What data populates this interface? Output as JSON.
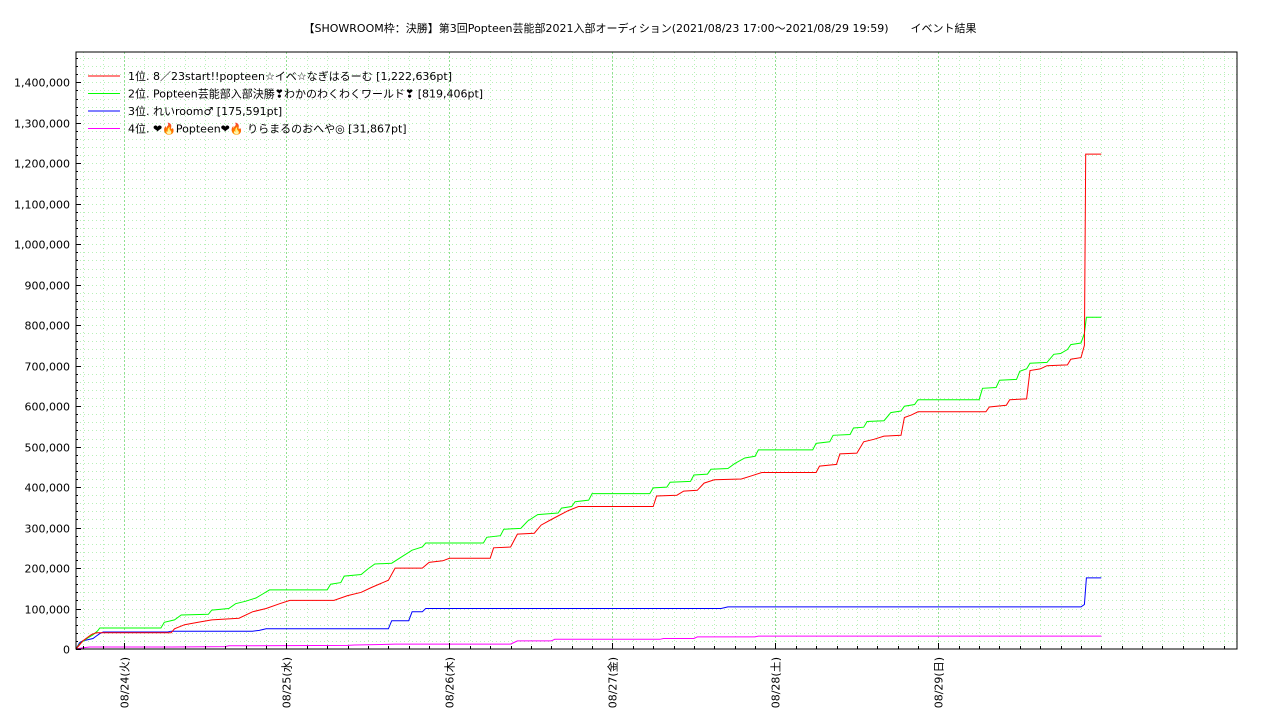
{
  "chart_data": {
    "type": "line",
    "title": "【SHOWROOM枠：決勝】第3回Popteen芸能部2021入部オーディション(2021/08/23 17:00〜2021/08/29 19:59)　　イベント結果",
    "xlabel": "",
    "ylabel": "",
    "ylim": [
      0,
      1475000
    ],
    "xlim": [
      0,
      170.98
    ],
    "x_unit": "hours since 2021/08/23 17:00",
    "grid": true,
    "legend_position": "top-left",
    "x_tick_labels": [
      {
        "x": 7,
        "label": "08/24(火)"
      },
      {
        "x": 31,
        "label": "08/25(水)"
      },
      {
        "x": 55,
        "label": "08/26(木)"
      },
      {
        "x": 79,
        "label": "08/27(金)"
      },
      {
        "x": 103,
        "label": "08/28(土)"
      },
      {
        "x": 127,
        "label": "08/29(日)"
      }
    ],
    "y_ticks": [
      0,
      100000,
      200000,
      300000,
      400000,
      500000,
      600000,
      700000,
      800000,
      900000,
      1000000,
      1100000,
      1200000,
      1300000,
      1400000
    ],
    "y_tick_labels": [
      "0",
      "100,000",
      "200,000",
      "300,000",
      "400,000",
      "500,000",
      "600,000",
      "700,000",
      "800,000",
      "900,000",
      "1,000,000",
      "1,100,000",
      "1,200,000",
      "1,300,000",
      "1,400,000"
    ],
    "series": [
      {
        "name": "1位. 8／23start!!popteen☆イベ☆なぎはるーむ [1,222,636pt]",
        "color": "#ff0000",
        "points": [
          [
            0,
            0
          ],
          [
            0.5,
            10000
          ],
          [
            1,
            20000
          ],
          [
            1.8,
            30000
          ],
          [
            2.3,
            36000
          ],
          [
            3,
            40000
          ],
          [
            14,
            40000
          ],
          [
            14.5,
            50000
          ],
          [
            16,
            60000
          ],
          [
            18,
            66000
          ],
          [
            20,
            72000
          ],
          [
            24,
            76000
          ],
          [
            26,
            92000
          ],
          [
            28,
            100000
          ],
          [
            30,
            112000
          ],
          [
            31.5,
            120000
          ],
          [
            38,
            120000
          ],
          [
            40,
            132000
          ],
          [
            42,
            140000
          ],
          [
            43.5,
            152000
          ],
          [
            46,
            170000
          ],
          [
            47,
            200000
          ],
          [
            51,
            200000
          ],
          [
            52,
            214000
          ],
          [
            54,
            218000
          ],
          [
            55,
            224000
          ],
          [
            61,
            224000
          ],
          [
            61.5,
            250000
          ],
          [
            64,
            252000
          ],
          [
            65,
            284000
          ],
          [
            67.5,
            286000
          ],
          [
            68.5,
            306000
          ],
          [
            70,
            320000
          ],
          [
            72.5,
            342000
          ],
          [
            74,
            352000
          ],
          [
            85,
            352000
          ],
          [
            85.5,
            378000
          ],
          [
            88.5,
            380000
          ],
          [
            89.5,
            390000
          ],
          [
            91.5,
            392000
          ],
          [
            92.5,
            410000
          ],
          [
            94,
            418000
          ],
          [
            98,
            420000
          ],
          [
            99.5,
            428000
          ],
          [
            101,
            436000
          ],
          [
            109,
            436000
          ],
          [
            109.5,
            452000
          ],
          [
            112,
            456000
          ],
          [
            112.5,
            482000
          ],
          [
            115,
            484000
          ],
          [
            116,
            512000
          ],
          [
            117.5,
            518000
          ],
          [
            119,
            526000
          ],
          [
            121.5,
            528000
          ],
          [
            122,
            572000
          ],
          [
            123,
            578000
          ],
          [
            124,
            586000
          ],
          [
            134,
            586000
          ],
          [
            134.5,
            598000
          ],
          [
            137,
            602000
          ],
          [
            137.5,
            616000
          ],
          [
            140,
            618000
          ],
          [
            140.5,
            688000
          ],
          [
            142,
            692000
          ],
          [
            143,
            700000
          ],
          [
            146,
            702000
          ],
          [
            146.5,
            716000
          ],
          [
            148,
            720000
          ],
          [
            148.5,
            750000
          ],
          [
            148.7,
            1222636
          ],
          [
            151,
            1222636
          ]
        ]
      },
      {
        "name": "2位. Popteen芸能部入部決勝❣わかのわくわくワールド❣ [819,406pt]",
        "color": "#00ff00",
        "points": [
          [
            0,
            0
          ],
          [
            0.5,
            12000
          ],
          [
            1.5,
            25000
          ],
          [
            2.5,
            35000
          ],
          [
            3.2,
            45000
          ],
          [
            3.5,
            52000
          ],
          [
            12.5,
            52000
          ],
          [
            13,
            66000
          ],
          [
            14.5,
            72000
          ],
          [
            15.5,
            84000
          ],
          [
            19.5,
            86000
          ],
          [
            20,
            96000
          ],
          [
            22.5,
            100000
          ],
          [
            23.5,
            112000
          ],
          [
            25,
            118000
          ],
          [
            26.5,
            126000
          ],
          [
            27.5,
            136000
          ],
          [
            28.5,
            146000
          ],
          [
            37,
            146000
          ],
          [
            37.5,
            160000
          ],
          [
            39,
            164000
          ],
          [
            39.5,
            180000
          ],
          [
            42,
            184000
          ],
          [
            43,
            198000
          ],
          [
            44,
            210000
          ],
          [
            46.5,
            212000
          ],
          [
            48,
            228000
          ],
          [
            49.5,
            244000
          ],
          [
            51,
            252000
          ],
          [
            51.5,
            262000
          ],
          [
            60,
            262000
          ],
          [
            60.5,
            276000
          ],
          [
            62.5,
            280000
          ],
          [
            63,
            296000
          ],
          [
            65.5,
            298000
          ],
          [
            66.5,
            316000
          ],
          [
            68,
            332000
          ],
          [
            71,
            336000
          ],
          [
            71.5,
            348000
          ],
          [
            73,
            352000
          ],
          [
            73.5,
            364000
          ],
          [
            75.5,
            368000
          ],
          [
            76,
            384000
          ],
          [
            84.5,
            384000
          ],
          [
            85,
            398000
          ],
          [
            87,
            400000
          ],
          [
            87.5,
            412000
          ],
          [
            90.5,
            414000
          ],
          [
            91,
            430000
          ],
          [
            93,
            432000
          ],
          [
            93.5,
            444000
          ],
          [
            96,
            446000
          ],
          [
            97,
            458000
          ],
          [
            98.5,
            472000
          ],
          [
            100,
            476000
          ],
          [
            100.5,
            492000
          ],
          [
            108.5,
            492000
          ],
          [
            109,
            508000
          ],
          [
            111,
            512000
          ],
          [
            111.5,
            528000
          ],
          [
            114,
            530000
          ],
          [
            114.5,
            546000
          ],
          [
            116,
            548000
          ],
          [
            116.5,
            562000
          ],
          [
            119,
            564000
          ],
          [
            120,
            584000
          ],
          [
            121.5,
            588000
          ],
          [
            122,
            600000
          ],
          [
            123.5,
            604000
          ],
          [
            124,
            616000
          ],
          [
            133,
            616000
          ],
          [
            133.5,
            644000
          ],
          [
            135.5,
            646000
          ],
          [
            136,
            664000
          ],
          [
            138.5,
            666000
          ],
          [
            139,
            686000
          ],
          [
            140,
            692000
          ],
          [
            140.5,
            706000
          ],
          [
            143,
            708000
          ],
          [
            144,
            728000
          ],
          [
            145,
            730000
          ],
          [
            146,
            740000
          ],
          [
            146.5,
            752000
          ],
          [
            148,
            756000
          ],
          [
            148.5,
            780000
          ],
          [
            148.8,
            819406
          ],
          [
            151,
            819406
          ]
        ]
      },
      {
        "name": "3位. れいroom♂ [175,591pt]",
        "color": "#0000ff",
        "points": [
          [
            0,
            0
          ],
          [
            0.5,
            15000
          ],
          [
            1,
            20000
          ],
          [
            2.5,
            26000
          ],
          [
            3,
            32000
          ],
          [
            3.5,
            38000
          ],
          [
            4,
            42000
          ],
          [
            13.5,
            42000
          ],
          [
            14,
            44000
          ],
          [
            26,
            44000
          ],
          [
            27,
            46000
          ],
          [
            28,
            50000
          ],
          [
            46,
            50000
          ],
          [
            46.5,
            70000
          ],
          [
            49,
            70000
          ],
          [
            49.5,
            92000
          ],
          [
            51,
            92000
          ],
          [
            51.5,
            100000
          ],
          [
            95,
            100000
          ],
          [
            96,
            104000
          ],
          [
            148,
            104000
          ],
          [
            148.5,
            110000
          ],
          [
            148.8,
            175591
          ],
          [
            151,
            175591
          ]
        ]
      },
      {
        "name": "4位. ❤🔥Popteen❤🔥 りらまるのおへや◎ [31,867pt]",
        "color": "#ff00ff",
        "points": [
          [
            0,
            0
          ],
          [
            1,
            3000
          ],
          [
            2,
            5000
          ],
          [
            14,
            5000
          ],
          [
            22,
            6000
          ],
          [
            22.5,
            8000
          ],
          [
            40,
            9000
          ],
          [
            41,
            10000
          ],
          [
            45,
            11000
          ],
          [
            47,
            12000
          ],
          [
            64,
            12000
          ],
          [
            64.5,
            16000
          ],
          [
            65,
            20000
          ],
          [
            70,
            20000
          ],
          [
            70.5,
            24000
          ],
          [
            86,
            24000
          ],
          [
            86.5,
            26000
          ],
          [
            91,
            26000
          ],
          [
            91.5,
            30000
          ],
          [
            100,
            30000
          ],
          [
            100.5,
            31867
          ],
          [
            151,
            31867
          ]
        ]
      }
    ]
  }
}
